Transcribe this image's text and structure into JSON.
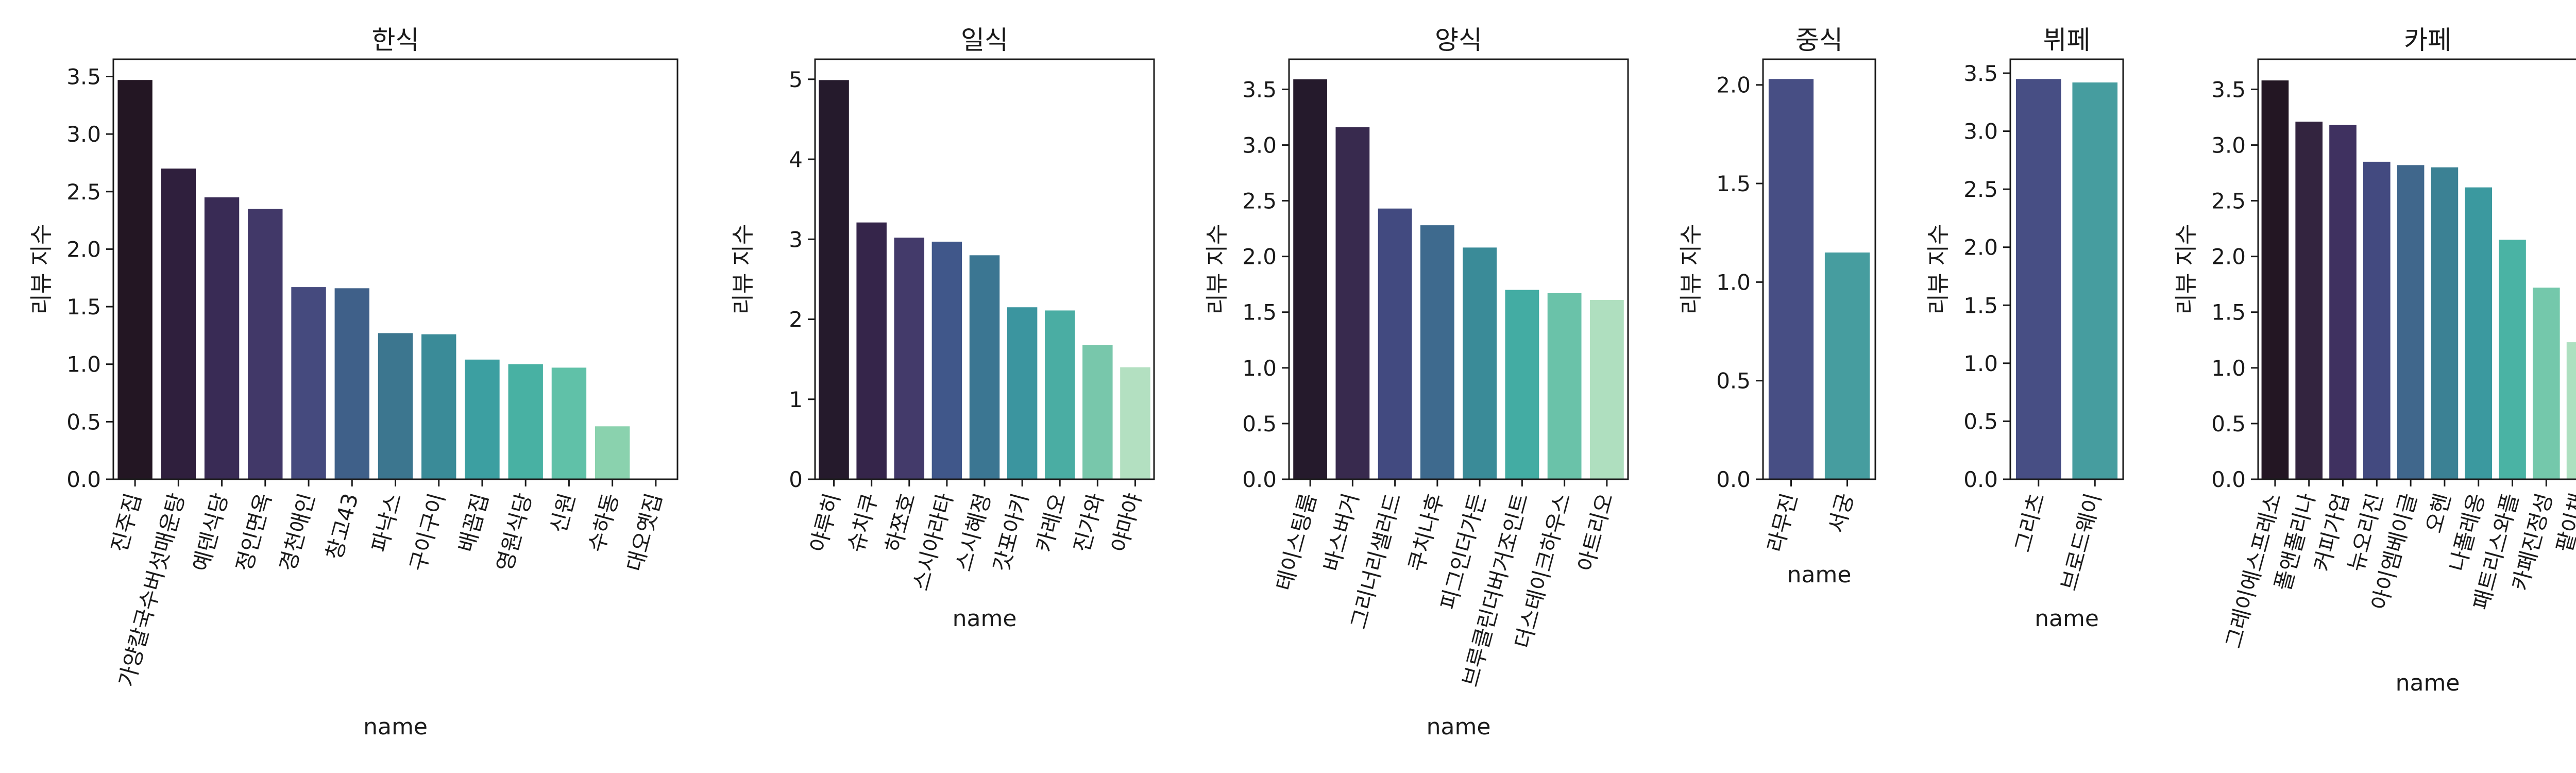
{
  "chart_data": [
    {
      "type": "bar",
      "title": "한식",
      "xlabel": "name",
      "ylabel": "리뷰 지수",
      "ylim": [
        0,
        3.65
      ],
      "yticks": [
        0.0,
        0.5,
        1.0,
        1.5,
        2.0,
        2.5,
        3.0,
        3.5
      ],
      "categories": [
        "진주집",
        "가양칼국수버섯매운탕",
        "예덴식당",
        "정인면옥",
        "경천애인",
        "창고43",
        "파낙스",
        "구이구이",
        "배꼽집",
        "영원식당",
        "신원",
        "수하동",
        "대오옛집"
      ],
      "values": [
        3.47,
        2.7,
        2.45,
        2.35,
        1.67,
        1.66,
        1.27,
        1.26,
        1.04,
        1.0,
        0.97,
        0.46,
        0.0
      ],
      "colors": [
        "#231623",
        "#2f1f3d",
        "#392b55",
        "#413868",
        "#454a7e",
        "#3f6089",
        "#3c768f",
        "#3a8b98",
        "#3c9fa1",
        "#48b1a3",
        "#60c1a8",
        "#8ad2ae",
        "#b9e4c4"
      ]
    },
    {
      "type": "bar",
      "title": "일식",
      "xlabel": "name",
      "ylabel": "리뷰 지수",
      "ylim": [
        0,
        5.25
      ],
      "yticks": [
        0,
        1,
        2,
        3,
        4,
        5
      ],
      "categories": [
        "야루히",
        "슈치쿠",
        "하쪼호",
        "스시아라타",
        "스시혜정",
        "갓포아키",
        "카레오",
        "진가와",
        "야마야"
      ],
      "values": [
        4.99,
        3.21,
        3.02,
        2.97,
        2.8,
        2.15,
        2.11,
        1.68,
        1.4
      ],
      "colors": [
        "#251a2c",
        "#35254a",
        "#433a6a",
        "#40578a",
        "#3b7692",
        "#3b959f",
        "#4aada3",
        "#78c7ab",
        "#b3e0c1"
      ]
    },
    {
      "type": "bar",
      "title": "양식",
      "xlabel": "name",
      "ylabel": "리뷰 지수",
      "ylim": [
        0,
        3.77
      ],
      "yticks": [
        0.0,
        0.5,
        1.0,
        1.5,
        2.0,
        2.5,
        3.0,
        3.5
      ],
      "categories": [
        "테이스팅룸",
        "바스버거",
        "그리너리샐러드",
        "쿠치나후",
        "피그인더가든",
        "브루클린더버거조인트",
        "더스테이크하우스",
        "아트리오"
      ],
      "values": [
        3.59,
        3.16,
        2.43,
        2.28,
        2.08,
        1.7,
        1.67,
        1.61
      ],
      "colors": [
        "#251a2c",
        "#382a4e",
        "#424a80",
        "#3e6a8e",
        "#3a8b98",
        "#43aca3",
        "#6ac2a9",
        "#afdfbf"
      ]
    },
    {
      "type": "bar",
      "title": "중식",
      "xlabel": "name",
      "ylabel": "리뷰 지수",
      "ylim": [
        0,
        2.13
      ],
      "yticks": [
        0.0,
        0.5,
        1.0,
        1.5,
        2.0
      ],
      "categories": [
        "라무진",
        "서궁"
      ],
      "values": [
        2.03,
        1.15
      ],
      "colors": [
        "#474e84",
        "#469d9f"
      ]
    },
    {
      "type": "bar",
      "title": "뷔페",
      "xlabel": "name",
      "ylabel": "리뷰 지수",
      "ylim": [
        0,
        3.62
      ],
      "yticks": [
        0.0,
        0.5,
        1.0,
        1.5,
        2.0,
        2.5,
        3.0,
        3.5
      ],
      "categories": [
        "그리츠",
        "브로드웨이"
      ],
      "values": [
        3.45,
        3.42
      ],
      "colors": [
        "#474e84",
        "#469d9f"
      ]
    },
    {
      "type": "bar",
      "title": "카페",
      "xlabel": "name",
      "ylabel": "리뷰 지수",
      "ylim": [
        0,
        3.77
      ],
      "yticks": [
        0.0,
        0.5,
        1.0,
        1.5,
        2.0,
        2.5,
        3.0,
        3.5
      ],
      "categories": [
        "그레이에스프레소",
        "폴앤폴리나",
        "커피가업",
        "뉴오리진",
        "아이엠베이글",
        "오헨",
        "나폴레옹",
        "패트리스와플",
        "카페진정성",
        "팥이채"
      ],
      "values": [
        3.58,
        3.21,
        3.18,
        2.85,
        2.82,
        2.8,
        2.62,
        2.15,
        1.72,
        1.23
      ],
      "colors": [
        "#231623",
        "#33243f",
        "#3f3160",
        "#434a80",
        "#40678c",
        "#3b8194",
        "#3b999f",
        "#4ab3a4",
        "#74c8ab",
        "#ade0c0"
      ]
    }
  ]
}
